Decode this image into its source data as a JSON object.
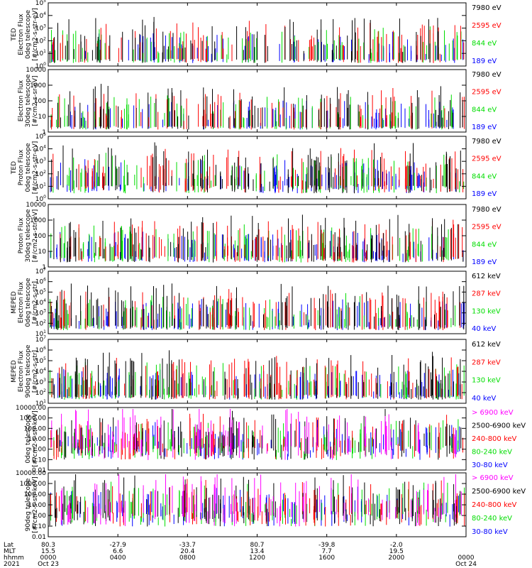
{
  "chart_data": {
    "type": "line",
    "time_axis": {
      "row_labels": [
        "Lat",
        "MLT",
        "hhmm",
        "2021"
      ],
      "ticks": [
        {
          "lat": "80.3",
          "mlt": "15.5",
          "hhmm": "0000",
          "date": "Oct 23"
        },
        {
          "lat": "-27.9",
          "mlt": "6.6",
          "hhmm": "0400",
          "date": ""
        },
        {
          "lat": "-33.7",
          "mlt": "20.4",
          "hhmm": "0800",
          "date": ""
        },
        {
          "lat": "80.7",
          "mlt": "13.4",
          "hhmm": "1200",
          "date": ""
        },
        {
          "lat": "-39.8",
          "mlt": "7.7",
          "hhmm": "1600",
          "date": ""
        },
        {
          "lat": "-2.0",
          "mlt": "19.5",
          "hhmm": "2000",
          "date": ""
        },
        {
          "lat": "",
          "mlt": "",
          "hhmm": "0000",
          "date": "Oct 24"
        }
      ],
      "x_hours": [
        0,
        4,
        8,
        12,
        16,
        20,
        24
      ]
    },
    "panels": [
      {
        "ylabel": [
          "TED",
          "Electron Flux",
          "0deg telescope",
          "[#/cm2-s-str-eV]"
        ],
        "scale": "log",
        "ylim": [
          1,
          100000
        ],
        "yticks": [
          [
            1,
            "10^0"
          ],
          [
            10,
            "10^1"
          ],
          [
            100,
            "10^2"
          ],
          [
            1000,
            "10^3"
          ],
          [
            10000,
            "10^4"
          ],
          [
            100000,
            "10^5"
          ]
        ],
        "series": [
          {
            "name": "7980 eV",
            "color": "#000000"
          },
          {
            "name": "2595 eV",
            "color": "#ff0000"
          },
          {
            "name": "844 eV",
            "color": "#00dd00"
          },
          {
            "name": "189 eV",
            "color": "#0000ff"
          }
        ]
      },
      {
        "ylabel": [
          "Electron Flux",
          "30deg telescope",
          "[#/cm2-s-sr-eV]"
        ],
        "scale": "log",
        "ylim": [
          1,
          10000
        ],
        "yticks": [
          [
            1,
            "1"
          ],
          [
            10,
            "10"
          ],
          [
            100,
            "100"
          ],
          [
            1000,
            "1000"
          ],
          [
            10000,
            "10000"
          ]
        ],
        "series": [
          {
            "name": "7980 eV",
            "color": "#000000"
          },
          {
            "name": "2595 eV",
            "color": "#ff0000"
          },
          {
            "name": "844 eV",
            "color": "#00dd00"
          },
          {
            "name": "189 eV",
            "color": "#0000ff"
          }
        ]
      },
      {
        "ylabel": [
          "TED",
          "Proton Flux",
          "0deg telescope",
          "[#/cm2-s-str-eV]"
        ],
        "scale": "log",
        "ylim": [
          1,
          100000
        ],
        "yticks": [
          [
            1,
            "10^0"
          ],
          [
            10,
            "10^1"
          ],
          [
            100,
            "10^2"
          ],
          [
            1000,
            "10^3"
          ],
          [
            10000,
            "10^4"
          ],
          [
            100000,
            "10^5"
          ]
        ],
        "series": [
          {
            "name": "7980 eV",
            "color": "#000000"
          },
          {
            "name": "2595 eV",
            "color": "#ff0000"
          },
          {
            "name": "844 eV",
            "color": "#00dd00"
          },
          {
            "name": "189 eV",
            "color": "#0000ff"
          }
        ]
      },
      {
        "ylabel": [
          "Proton Flux",
          "30deg telescope",
          "[#/cm2-s-str-eV]"
        ],
        "scale": "log",
        "ylim": [
          1,
          10000
        ],
        "yticks": [
          [
            1,
            "1"
          ],
          [
            10,
            "10"
          ],
          [
            100,
            "100"
          ],
          [
            1000,
            "1000"
          ],
          [
            10000,
            "10000"
          ]
        ],
        "series": [
          {
            "name": "7980 eV",
            "color": "#000000"
          },
          {
            "name": "2595 eV",
            "color": "#ff0000"
          },
          {
            "name": "844 eV",
            "color": "#00dd00"
          },
          {
            "name": "189 eV",
            "color": "#0000ff"
          }
        ]
      },
      {
        "ylabel": [
          "MEPED",
          "Electron Flux",
          "0deg telescope",
          "[#/cm2-s-str]"
        ],
        "scale": "log",
        "ylim": [
          10,
          10000000
        ],
        "yticks": [
          [
            10,
            "10^1"
          ],
          [
            100,
            "10^2"
          ],
          [
            1000,
            "10^3"
          ],
          [
            10000,
            "10^4"
          ],
          [
            100000,
            "10^5"
          ],
          [
            1000000,
            "10^6"
          ],
          [
            10000000,
            "10^7"
          ]
        ],
        "series": [
          {
            "name": "612 keV",
            "color": "#000000"
          },
          {
            "name": "287 keV",
            "color": "#ff0000"
          },
          {
            "name": "130 keV",
            "color": "#00dd00"
          },
          {
            "name": "40 keV",
            "color": "#0000ff"
          }
        ]
      },
      {
        "ylabel": [
          "MEPED",
          "Electron Flux",
          "90deg telescope",
          "[#/cm2-s-str]"
        ],
        "scale": "log",
        "ylim": [
          10,
          10000000
        ],
        "yticks": [
          [
            10,
            "10^1"
          ],
          [
            100,
            "10^2"
          ],
          [
            1000,
            "10^3"
          ],
          [
            10000,
            "10^4"
          ],
          [
            100000,
            "10^5"
          ],
          [
            1000000,
            "10^6"
          ],
          [
            10000000,
            "10^7"
          ]
        ],
        "series": [
          {
            "name": "612 keV",
            "color": "#000000"
          },
          {
            "name": "287 keV",
            "color": "#ff0000"
          },
          {
            "name": "130 keV",
            "color": "#00dd00"
          },
          {
            "name": "40 keV",
            "color": "#0000ff"
          }
        ]
      },
      {
        "ylabel": [
          "0deg telescope",
          "[#/cm2-s-str-keV]"
        ],
        "scale": "log",
        "ylim": [
          0.01,
          10000
        ],
        "yticks": [
          [
            0.01,
            "0.01"
          ],
          [
            0.1,
            "0.10"
          ],
          [
            1,
            "1.00"
          ],
          [
            10,
            "10.00"
          ],
          [
            100,
            "100.00"
          ],
          [
            1000,
            "1000.00"
          ],
          [
            10000,
            "10000.00"
          ]
        ],
        "series": [
          {
            "name": "> 6900 keV",
            "color": "#ff00ff"
          },
          {
            "name": "2500-6900 keV",
            "color": "#000000"
          },
          {
            "name": "240-800 keV",
            "color": "#ff0000"
          },
          {
            "name": "80-240 keV",
            "color": "#00dd00"
          },
          {
            "name": "30-80 keV",
            "color": "#0000ff"
          }
        ]
      },
      {
        "ylabel": [
          "90deg telescope",
          "[#/cm2-s-str-keV]"
        ],
        "scale": "log",
        "ylim": [
          0.01,
          10000
        ],
        "yticks": [
          [
            0.01,
            "0.01"
          ],
          [
            0.1,
            "0.10"
          ],
          [
            1,
            "1.00"
          ],
          [
            10,
            "10.00"
          ],
          [
            100,
            "100.00"
          ],
          [
            1000,
            "1000.00"
          ],
          [
            10000,
            "10000.00"
          ]
        ],
        "series": [
          {
            "name": "> 6900 keV",
            "color": "#ff00ff"
          },
          {
            "name": "2500-6900 keV",
            "color": "#000000"
          },
          {
            "name": "240-800 keV",
            "color": "#ff0000"
          },
          {
            "name": "80-240 keV",
            "color": "#00dd00"
          },
          {
            "name": "30-80 keV",
            "color": "#0000ff"
          }
        ]
      }
    ]
  }
}
